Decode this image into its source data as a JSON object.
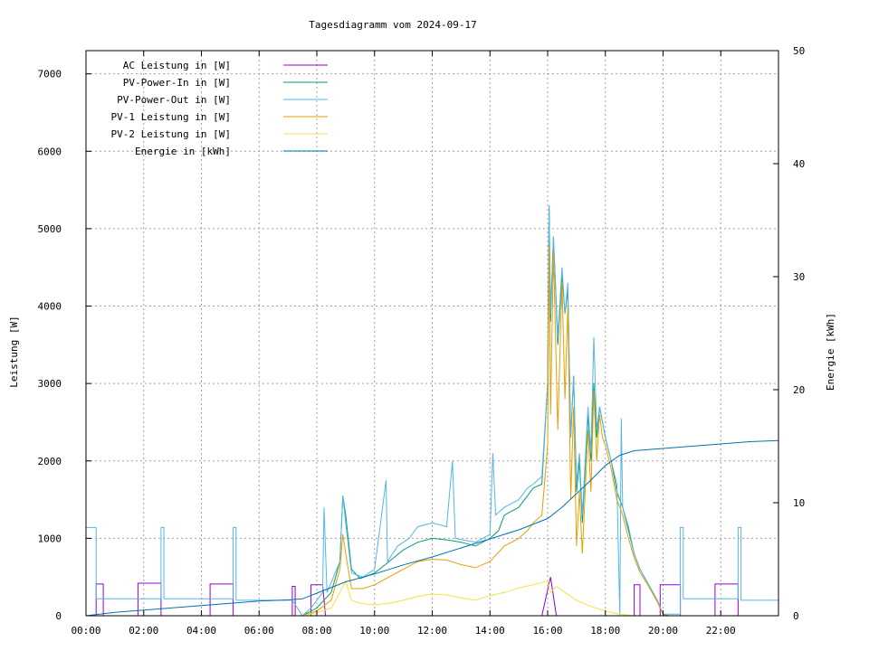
{
  "chart_data": {
    "type": "line",
    "title": "Tagesdiagramm vom 2024-09-17",
    "ylabel": "Leistung [W]",
    "y2label": "Energie [kWh]",
    "xlim": [
      0,
      24
    ],
    "ylim": [
      0,
      7300
    ],
    "y2lim": [
      0,
      50
    ],
    "grid": true,
    "legend_position": "top-left",
    "x_ticks": [
      {
        "value": 0,
        "label": "00:00"
      },
      {
        "value": 2,
        "label": "02:00"
      },
      {
        "value": 4,
        "label": "04:00"
      },
      {
        "value": 6,
        "label": "06:00"
      },
      {
        "value": 8,
        "label": "08:00"
      },
      {
        "value": 10,
        "label": "10:00"
      },
      {
        "value": 12,
        "label": "12:00"
      },
      {
        "value": 14,
        "label": "14:00"
      },
      {
        "value": 16,
        "label": "16:00"
      },
      {
        "value": 18,
        "label": "18:00"
      },
      {
        "value": 20,
        "label": "20:00"
      },
      {
        "value": 22,
        "label": "22:00"
      }
    ],
    "y_ticks": [
      {
        "value": 0,
        "label": "0"
      },
      {
        "value": 1000,
        "label": "1000"
      },
      {
        "value": 2000,
        "label": "2000"
      },
      {
        "value": 3000,
        "label": "3000"
      },
      {
        "value": 4000,
        "label": "4000"
      },
      {
        "value": 5000,
        "label": "5000"
      },
      {
        "value": 6000,
        "label": "6000"
      },
      {
        "value": 7000,
        "label": "7000"
      }
    ],
    "y2_ticks": [
      {
        "value": 0,
        "label": "0"
      },
      {
        "value": 10,
        "label": "10"
      },
      {
        "value": 20,
        "label": "20"
      },
      {
        "value": 30,
        "label": "30"
      },
      {
        "value": 40,
        "label": "40"
      },
      {
        "value": 50,
        "label": "50"
      }
    ],
    "series": [
      {
        "name": "AC Leistung in [W]",
        "color": "#9400d3",
        "axis": "y",
        "points": [
          [
            0,
            0
          ],
          [
            0.35,
            0
          ],
          [
            0.35,
            410
          ],
          [
            0.6,
            410
          ],
          [
            0.6,
            0
          ],
          [
            1.8,
            0
          ],
          [
            1.8,
            420
          ],
          [
            2.6,
            420
          ],
          [
            2.6,
            0
          ],
          [
            4.3,
            0
          ],
          [
            4.3,
            410
          ],
          [
            5.1,
            410
          ],
          [
            5.1,
            0
          ],
          [
            7.15,
            0
          ],
          [
            7.15,
            380
          ],
          [
            7.25,
            380
          ],
          [
            7.25,
            0
          ],
          [
            7.8,
            0
          ],
          [
            7.8,
            400
          ],
          [
            8.2,
            400
          ],
          [
            8.3,
            0
          ],
          [
            15.8,
            0
          ],
          [
            16.1,
            500
          ],
          [
            16.3,
            0
          ],
          [
            19.0,
            0
          ],
          [
            19.0,
            400
          ],
          [
            19.2,
            400
          ],
          [
            19.2,
            0
          ],
          [
            19.9,
            0
          ],
          [
            19.9,
            400
          ],
          [
            20.6,
            400
          ],
          [
            20.6,
            0
          ],
          [
            21.8,
            0
          ],
          [
            21.8,
            410
          ],
          [
            22.6,
            410
          ],
          [
            22.6,
            0
          ],
          [
            24,
            0
          ]
        ]
      },
      {
        "name": "PV-Power-In in [W]",
        "color": "#009e73",
        "axis": "y",
        "points": [
          [
            0,
            0
          ],
          [
            7.5,
            0
          ],
          [
            8.0,
            100
          ],
          [
            8.5,
            300
          ],
          [
            8.8,
            700
          ],
          [
            8.9,
            1550
          ],
          [
            9.0,
            1300
          ],
          [
            9.2,
            600
          ],
          [
            9.5,
            480
          ],
          [
            10.0,
            550
          ],
          [
            10.5,
            700
          ],
          [
            11.0,
            850
          ],
          [
            11.5,
            950
          ],
          [
            12.0,
            1000
          ],
          [
            12.5,
            980
          ],
          [
            13.0,
            950
          ],
          [
            13.5,
            900
          ],
          [
            14.0,
            1000
          ],
          [
            14.3,
            1100
          ],
          [
            14.5,
            1300
          ],
          [
            15.0,
            1400
          ],
          [
            15.3,
            1550
          ],
          [
            15.5,
            1650
          ],
          [
            15.8,
            1700
          ],
          [
            16.0,
            3000
          ],
          [
            16.05,
            5300
          ],
          [
            16.1,
            3800
          ],
          [
            16.2,
            4900
          ],
          [
            16.35,
            3500
          ],
          [
            16.5,
            4400
          ],
          [
            16.6,
            3900
          ],
          [
            16.7,
            4200
          ],
          [
            16.8,
            2300
          ],
          [
            16.9,
            3100
          ],
          [
            17.0,
            1600
          ],
          [
            17.1,
            2000
          ],
          [
            17.2,
            1200
          ],
          [
            17.4,
            2600
          ],
          [
            17.5,
            2000
          ],
          [
            17.6,
            3000
          ],
          [
            17.7,
            2300
          ],
          [
            17.8,
            2700
          ],
          [
            17.9,
            2500
          ],
          [
            18.0,
            2300
          ],
          [
            18.2,
            2000
          ],
          [
            18.4,
            1600
          ],
          [
            18.6,
            1400
          ],
          [
            18.8,
            1100
          ],
          [
            19.0,
            800
          ],
          [
            19.2,
            600
          ],
          [
            19.5,
            400
          ],
          [
            19.8,
            200
          ],
          [
            20.0,
            20
          ],
          [
            20.2,
            0
          ],
          [
            24,
            0
          ]
        ]
      },
      {
        "name": "PV-Power-Out in [W]",
        "color": "#56b4e9",
        "axis": "y",
        "points": [
          [
            0,
            1140
          ],
          [
            0.35,
            1140
          ],
          [
            0.35,
            220
          ],
          [
            2.6,
            220
          ],
          [
            2.6,
            1140
          ],
          [
            2.7,
            1140
          ],
          [
            2.7,
            220
          ],
          [
            5.1,
            220
          ],
          [
            5.1,
            1140
          ],
          [
            5.2,
            1140
          ],
          [
            5.2,
            200
          ],
          [
            7.15,
            200
          ],
          [
            7.5,
            0
          ],
          [
            7.8,
            100
          ],
          [
            8.2,
            300
          ],
          [
            8.25,
            1400
          ],
          [
            8.35,
            300
          ],
          [
            8.8,
            700
          ],
          [
            8.9,
            1550
          ],
          [
            9.0,
            1200
          ],
          [
            9.2,
            550
          ],
          [
            9.6,
            500
          ],
          [
            10.0,
            600
          ],
          [
            10.4,
            1750
          ],
          [
            10.45,
            700
          ],
          [
            10.8,
            900
          ],
          [
            11.2,
            1000
          ],
          [
            11.5,
            1150
          ],
          [
            12.0,
            1200
          ],
          [
            12.5,
            1150
          ],
          [
            12.7,
            2000
          ],
          [
            12.8,
            1000
          ],
          [
            13.5,
            950
          ],
          [
            14.0,
            1050
          ],
          [
            14.1,
            2100
          ],
          [
            14.2,
            1300
          ],
          [
            14.5,
            1400
          ],
          [
            15.0,
            1500
          ],
          [
            15.3,
            1650
          ],
          [
            15.5,
            1700
          ],
          [
            15.8,
            1800
          ],
          [
            16.0,
            3000
          ],
          [
            16.05,
            5300
          ],
          [
            16.1,
            3900
          ],
          [
            16.2,
            4900
          ],
          [
            16.35,
            3600
          ],
          [
            16.5,
            4500
          ],
          [
            16.6,
            3900
          ],
          [
            16.7,
            4300
          ],
          [
            16.8,
            2300
          ],
          [
            16.9,
            3100
          ],
          [
            17.0,
            1700
          ],
          [
            17.1,
            2100
          ],
          [
            17.2,
            1300
          ],
          [
            17.4,
            2700
          ],
          [
            17.5,
            2100
          ],
          [
            17.6,
            3600
          ],
          [
            17.7,
            2400
          ],
          [
            17.8,
            2700
          ],
          [
            17.9,
            2500
          ],
          [
            18.0,
            2300
          ],
          [
            18.2,
            2000
          ],
          [
            18.4,
            1700
          ],
          [
            18.5,
            0
          ],
          [
            18.55,
            2550
          ],
          [
            18.6,
            1400
          ],
          [
            18.8,
            1150
          ],
          [
            19.0,
            800
          ],
          [
            19.2,
            600
          ],
          [
            19.5,
            400
          ],
          [
            19.8,
            200
          ],
          [
            20.0,
            20
          ],
          [
            20.6,
            20
          ],
          [
            20.6,
            1140
          ],
          [
            20.7,
            1140
          ],
          [
            20.7,
            220
          ],
          [
            22.6,
            220
          ],
          [
            22.6,
            1140
          ],
          [
            22.7,
            1140
          ],
          [
            22.7,
            200
          ],
          [
            24,
            200
          ]
        ]
      },
      {
        "name": "PV-1 Leistung in [W]",
        "color": "#e69f00",
        "axis": "y",
        "points": [
          [
            0,
            0
          ],
          [
            7.5,
            0
          ],
          [
            8.0,
            60
          ],
          [
            8.5,
            200
          ],
          [
            8.8,
            600
          ],
          [
            8.9,
            1050
          ],
          [
            9.0,
            800
          ],
          [
            9.2,
            350
          ],
          [
            9.6,
            350
          ],
          [
            10.0,
            400
          ],
          [
            10.5,
            500
          ],
          [
            11.0,
            600
          ],
          [
            11.5,
            700
          ],
          [
            12.0,
            730
          ],
          [
            12.5,
            720
          ],
          [
            13.0,
            660
          ],
          [
            13.5,
            620
          ],
          [
            14.0,
            700
          ],
          [
            14.5,
            900
          ],
          [
            15.0,
            1000
          ],
          [
            15.3,
            1100
          ],
          [
            15.5,
            1200
          ],
          [
            15.8,
            1300
          ],
          [
            16.0,
            2200
          ],
          [
            16.05,
            4800
          ],
          [
            16.1,
            2600
          ],
          [
            16.2,
            4700
          ],
          [
            16.35,
            2400
          ],
          [
            16.5,
            4300
          ],
          [
            16.6,
            2800
          ],
          [
            16.7,
            4000
          ],
          [
            16.8,
            1500
          ],
          [
            16.9,
            2700
          ],
          [
            17.0,
            900
          ],
          [
            17.1,
            1600
          ],
          [
            17.2,
            800
          ],
          [
            17.4,
            2400
          ],
          [
            17.5,
            1600
          ],
          [
            17.6,
            2900
          ],
          [
            17.7,
            2000
          ],
          [
            17.8,
            2600
          ],
          [
            17.9,
            2300
          ],
          [
            18.0,
            2200
          ],
          [
            18.2,
            1900
          ],
          [
            18.4,
            1500
          ],
          [
            18.6,
            1300
          ],
          [
            18.8,
            1000
          ],
          [
            19.0,
            750
          ],
          [
            19.2,
            560
          ],
          [
            19.5,
            380
          ],
          [
            19.8,
            180
          ],
          [
            20.0,
            10
          ],
          [
            20.2,
            0
          ],
          [
            24,
            0
          ]
        ]
      },
      {
        "name": "PV-2 Leistung in [W]",
        "color": "#f0e442",
        "axis": "y",
        "points": [
          [
            0,
            0
          ],
          [
            7.5,
            0
          ],
          [
            8.0,
            40
          ],
          [
            8.5,
            100
          ],
          [
            8.8,
            300
          ],
          [
            9.0,
            450
          ],
          [
            9.2,
            200
          ],
          [
            9.5,
            160
          ],
          [
            10.0,
            140
          ],
          [
            10.5,
            160
          ],
          [
            11.0,
            200
          ],
          [
            11.5,
            250
          ],
          [
            12.0,
            280
          ],
          [
            12.5,
            270
          ],
          [
            13.0,
            230
          ],
          [
            13.5,
            200
          ],
          [
            14.0,
            260
          ],
          [
            14.5,
            300
          ],
          [
            15.0,
            360
          ],
          [
            15.5,
            400
          ],
          [
            16.0,
            450
          ],
          [
            16.1,
            300
          ],
          [
            16.3,
            380
          ],
          [
            16.6,
            300
          ],
          [
            17.0,
            200
          ],
          [
            17.5,
            120
          ],
          [
            18.0,
            60
          ],
          [
            18.5,
            20
          ],
          [
            19.0,
            0
          ],
          [
            24,
            0
          ]
        ]
      },
      {
        "name": "Energie in [kWh]",
        "color": "#0072b2",
        "axis": "y2",
        "points": [
          [
            0,
            0
          ],
          [
            1,
            0.3
          ],
          [
            2,
            0.5
          ],
          [
            3,
            0.7
          ],
          [
            4,
            0.9
          ],
          [
            5,
            1.1
          ],
          [
            6,
            1.3
          ],
          [
            7,
            1.4
          ],
          [
            7.5,
            1.5
          ],
          [
            8,
            2.0
          ],
          [
            9,
            3.0
          ],
          [
            10,
            3.7
          ],
          [
            11,
            4.5
          ],
          [
            12,
            5.2
          ],
          [
            13,
            6.0
          ],
          [
            14,
            6.8
          ],
          [
            15,
            7.6
          ],
          [
            16,
            8.6
          ],
          [
            16.5,
            9.6
          ],
          [
            17,
            10.8
          ],
          [
            17.5,
            12.0
          ],
          [
            18,
            13.3
          ],
          [
            18.5,
            14.2
          ],
          [
            19,
            14.6
          ],
          [
            20,
            14.8
          ],
          [
            21,
            15.0
          ],
          [
            22,
            15.2
          ],
          [
            23,
            15.4
          ],
          [
            24,
            15.5
          ]
        ]
      }
    ]
  }
}
